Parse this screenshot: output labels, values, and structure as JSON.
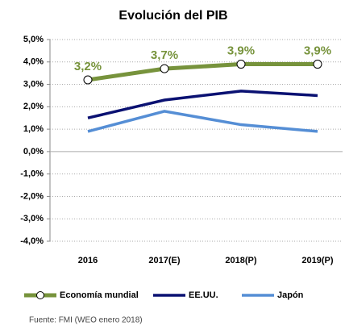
{
  "chart_data": {
    "type": "line",
    "title": "Evolución del PIB",
    "categories": [
      "2016",
      "2017(E)",
      "2018(P)",
      "2019(P)"
    ],
    "series": [
      {
        "name": "Economía mundial",
        "color": "#77933c",
        "values": [
          3.2,
          3.7,
          3.9,
          3.9
        ],
        "value_labels": [
          "3,2%",
          "3,7%",
          "3,9%",
          "3,9%"
        ],
        "markers": true
      },
      {
        "name": "EE.UU.",
        "color": "#0a1172",
        "values": [
          1.5,
          2.3,
          2.7,
          2.5
        ]
      },
      {
        "name": "Japón",
        "color": "#558ed5",
        "values": [
          0.9,
          1.8,
          1.2,
          0.9
        ]
      }
    ],
    "ylim": [
      -4,
      5
    ],
    "yticks": [
      {
        "value": 5,
        "label": "5,0%"
      },
      {
        "value": 4,
        "label": "4,0%"
      },
      {
        "value": 3,
        "label": "3,0%"
      },
      {
        "value": 2,
        "label": "2,0%"
      },
      {
        "value": 1,
        "label": "1,0%"
      },
      {
        "value": 0,
        "label": "0,0%"
      },
      {
        "value": -1,
        "label": "-1,0%"
      },
      {
        "value": -2,
        "label": "-2,0%"
      },
      {
        "value": -3,
        "label": "-3,0%"
      },
      {
        "value": -4,
        "label": "-4,0%"
      }
    ],
    "grid": true,
    "legend": "bottom",
    "source": "Fuente: FMI (WEO enero 2018)"
  }
}
